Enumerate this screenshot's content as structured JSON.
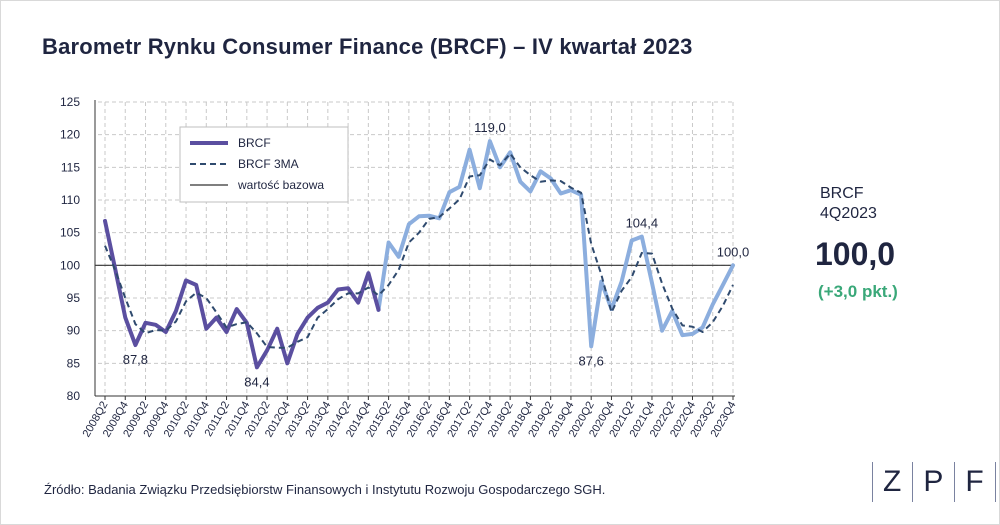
{
  "title": "Barometr Rynku Consumer Finance (BRCF) – IV kwartał 2023",
  "side": {
    "label_line1": "BRCF",
    "label_line2": "4Q2023",
    "value": "100,0",
    "change": "(+3,0 pkt.)"
  },
  "source": "Źródło: Badania Związku Przedsiębiorstw Finansowych i Instytutu Rozwoju Gospodarczego SGH.",
  "logo": {
    "letters": [
      "Z",
      "P",
      "F"
    ]
  },
  "colors": {
    "brcf_dark": "#5b4fa0",
    "brcf_light": "#8caede",
    "ma": "#2f4a6e",
    "baseline": "#333333",
    "grid": "#c9c9c9",
    "change": "#3aa879"
  },
  "chart_data": {
    "type": "line",
    "ylim": [
      80,
      125
    ],
    "yticks": [
      80,
      85,
      90,
      95,
      100,
      105,
      110,
      115,
      120,
      125
    ],
    "categories": [
      "2008Q2",
      "2008Q3",
      "2008Q4",
      "2009Q1",
      "2009Q2",
      "2009Q3",
      "2009Q4",
      "2010Q1",
      "2010Q2",
      "2010Q3",
      "2010Q4",
      "2011Q1",
      "2011Q2",
      "2011Q3",
      "2011Q4",
      "2012Q1",
      "2012Q2",
      "2012Q3",
      "2012Q4",
      "2013Q1",
      "2013Q2",
      "2013Q3",
      "2013Q4",
      "2014Q1",
      "2014Q2",
      "2014Q3",
      "2014Q4",
      "2015Q1",
      "2015Q2",
      "2015Q3",
      "2015Q4",
      "2016Q1",
      "2016Q2",
      "2016Q3",
      "2016Q4",
      "2017Q1",
      "2017Q2",
      "2017Q3",
      "2017Q4",
      "2018Q1",
      "2018Q2",
      "2018Q3",
      "2018Q4",
      "2019Q1",
      "2019Q2",
      "2019Q3",
      "2019Q4",
      "2020Q1",
      "2020Q2",
      "2020Q3",
      "2020Q4",
      "2021Q1",
      "2021Q2",
      "2021Q3",
      "2021Q4",
      "2022Q1",
      "2022Q2",
      "2022Q3",
      "2022Q4",
      "2023Q1",
      "2023Q2",
      "2023Q3",
      "2023Q4"
    ],
    "tick_labels": [
      "2008Q2",
      "2008Q4",
      "2009Q2",
      "2009Q4",
      "2010Q2",
      "2010Q4",
      "2011Q2",
      "2011Q4",
      "2012Q2",
      "2012Q4",
      "2013Q2",
      "2013Q4",
      "2014Q2",
      "2014Q4",
      "2015Q2",
      "2015Q4",
      "2016Q2",
      "2016Q4",
      "2017Q2",
      "2017Q4",
      "2018Q2",
      "2018Q4",
      "2019Q2",
      "2019Q4",
      "2020Q2",
      "2020Q4",
      "2021Q2",
      "2021Q4",
      "2022Q2",
      "2022Q4",
      "2023Q2",
      "2023Q4"
    ],
    "series": [
      {
        "name": "BRCF",
        "values": [
          106.8,
          99.5,
          92.0,
          87.8,
          91.2,
          90.9,
          89.8,
          93.0,
          97.7,
          97.0,
          90.3,
          92.0,
          89.8,
          93.3,
          91.2,
          84.4,
          87.0,
          90.3,
          85.0,
          89.5,
          92.0,
          93.5,
          94.3,
          96.3,
          96.5,
          94.3,
          98.8,
          93.2,
          103.5,
          101.3,
          106.3,
          107.5,
          107.6,
          107.2,
          111.2,
          112.0,
          117.7,
          111.8,
          119.0,
          115.0,
          117.3,
          112.8,
          111.3,
          114.4,
          113.3,
          111.0,
          111.5,
          110.8,
          87.6,
          97.5,
          93.3,
          97.5,
          103.8,
          104.4,
          97.3,
          90.0,
          93.0,
          89.3,
          89.5,
          90.5,
          94.0,
          97.0,
          100.0
        ]
      },
      {
        "name": "BRCF 3MA",
        "values": [
          103.0,
          99.3,
          95.0,
          91.0,
          89.6,
          90.1,
          90.0,
          91.4,
          94.5,
          95.8,
          95.0,
          92.8,
          90.5,
          91.0,
          91.3,
          89.6,
          87.5,
          87.4,
          87.4,
          88.3,
          89.0,
          92.0,
          93.3,
          94.8,
          95.7,
          95.7,
          96.6,
          95.4,
          97.0,
          99.3,
          103.5,
          105.0,
          107.1,
          107.4,
          108.7,
          110.1,
          113.6,
          113.8,
          116.2,
          115.3,
          117.1,
          115.0,
          113.8,
          112.8,
          113.0,
          112.9,
          111.9,
          111.1,
          103.3,
          98.6,
          92.8,
          96.1,
          98.2,
          101.9,
          101.8,
          97.2,
          93.4,
          90.8,
          90.6,
          89.8,
          91.3,
          93.8,
          97.0
        ]
      }
    ],
    "dark_segment_end": "2015Q1",
    "baseline": {
      "name": "wartość bazowa",
      "value": 100
    },
    "annotations": [
      {
        "text": "87,8",
        "category": "2009Q1",
        "value": 87.8,
        "pos": "below"
      },
      {
        "text": "84,4",
        "category": "2012Q1",
        "value": 84.4,
        "pos": "below"
      },
      {
        "text": "119,0",
        "category": "2017Q4",
        "value": 119.0,
        "pos": "above"
      },
      {
        "text": "87,6",
        "category": "2020Q2",
        "value": 87.6,
        "pos": "below"
      },
      {
        "text": "104,4",
        "category": "2021Q3",
        "value": 104.4,
        "pos": "above"
      },
      {
        "text": "100,0",
        "category": "2023Q4",
        "value": 100.0,
        "pos": "above"
      }
    ],
    "legend": [
      "BRCF",
      "BRCF 3MA",
      "wartość bazowa"
    ],
    "legend_position": "top-left",
    "grid": true
  }
}
